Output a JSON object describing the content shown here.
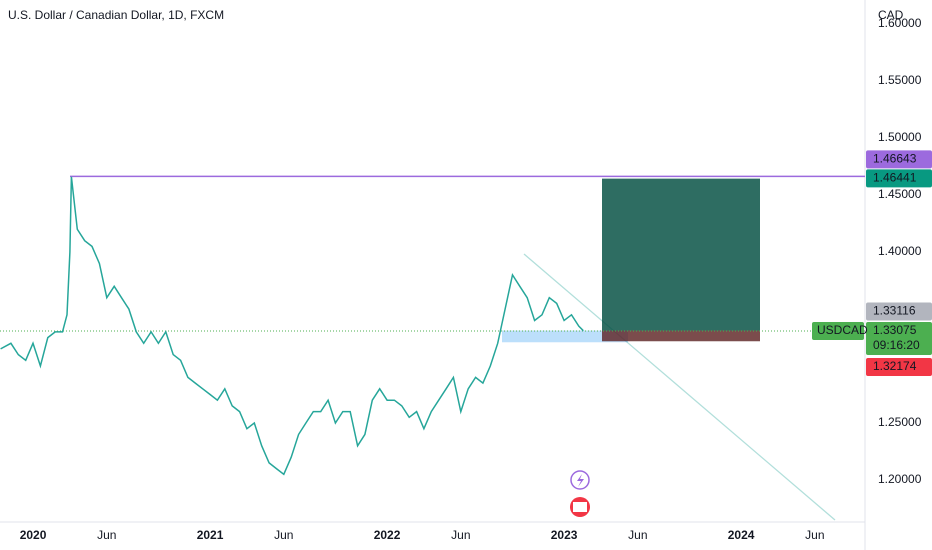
{
  "chart_data": {
    "type": "line",
    "title": "U.S. Dollar / Canadian Dollar, 1D, FXCM",
    "currency": "CAD",
    "symbol": "USDCAD",
    "countdown": "09:16:20",
    "color": "#26a69a",
    "x": [
      -2.2,
      -1.5,
      -1,
      -0.5,
      0,
      0.5,
      1,
      1.5,
      2,
      2.3,
      2.5,
      2.6,
      3,
      3.5,
      4,
      4.5,
      5,
      5.5,
      6,
      6.5,
      7,
      7.5,
      8,
      8.5,
      9,
      9.5,
      10,
      10.5,
      11,
      11.5,
      12,
      12.5,
      13,
      13.5,
      14,
      14.5,
      15,
      15.5,
      16,
      16.5,
      17,
      17.5,
      18,
      18.5,
      19,
      19.5,
      20,
      20.5,
      21,
      21.5,
      22,
      22.5,
      23,
      23.5,
      24,
      24.5,
      25,
      25.5,
      26,
      26.5,
      27,
      27.5,
      28,
      28.5,
      29,
      29.5,
      30,
      30.5,
      31,
      31.5,
      32,
      32.5,
      33,
      33.5,
      34,
      34.5,
      35,
      35.5,
      36,
      36.5,
      37,
      37.3
    ],
    "values": [
      1.315,
      1.32,
      1.31,
      1.305,
      1.32,
      1.3,
      1.325,
      1.33,
      1.33,
      1.345,
      1.4,
      1.466,
      1.42,
      1.41,
      1.405,
      1.39,
      1.36,
      1.37,
      1.36,
      1.35,
      1.33,
      1.32,
      1.33,
      1.32,
      1.33,
      1.31,
      1.305,
      1.29,
      1.285,
      1.28,
      1.275,
      1.27,
      1.28,
      1.265,
      1.26,
      1.245,
      1.25,
      1.23,
      1.215,
      1.21,
      1.205,
      1.22,
      1.24,
      1.25,
      1.26,
      1.26,
      1.27,
      1.25,
      1.26,
      1.26,
      1.23,
      1.24,
      1.27,
      1.28,
      1.27,
      1.27,
      1.265,
      1.255,
      1.26,
      1.245,
      1.26,
      1.27,
      1.28,
      1.29,
      1.26,
      1.28,
      1.29,
      1.285,
      1.3,
      1.32,
      1.35,
      1.38,
      1.37,
      1.36,
      1.34,
      1.345,
      1.36,
      1.355,
      1.34,
      1.345,
      1.335,
      1.331
    ],
    "xlim": [
      -2.24,
      56.4
    ],
    "xticks": [
      {
        "value": 0,
        "label": "2020"
      },
      {
        "value": 5,
        "label": "Jun"
      },
      {
        "value": 12,
        "label": "2021"
      },
      {
        "value": 17,
        "label": "Jun"
      },
      {
        "value": 24,
        "label": "2022"
      },
      {
        "value": 29,
        "label": "Jun"
      },
      {
        "value": 36,
        "label": "2023"
      },
      {
        "value": 41,
        "label": "Jun"
      },
      {
        "value": 48,
        "label": "2024"
      },
      {
        "value": 53,
        "label": "Jun"
      }
    ],
    "ylim": [
      1.1632,
      1.6211
    ],
    "yticks": [
      {
        "value": 1.6,
        "label": "1.60000"
      },
      {
        "value": 1.55,
        "label": "1.55000"
      },
      {
        "value": 1.5,
        "label": "1.50000"
      },
      {
        "value": 1.45,
        "label": "1.45000"
      },
      {
        "value": 1.4,
        "label": "1.40000"
      },
      {
        "value": 1.25,
        "label": "1.25000"
      },
      {
        "value": 1.2,
        "label": "1.20000"
      }
    ],
    "resistance": {
      "value": 1.46643,
      "label": "1.46643"
    },
    "target": {
      "value": 1.46441,
      "label": "1.46441"
    },
    "entry": {
      "value": 1.33116,
      "label": "1.33116"
    },
    "last": {
      "value": 1.33075,
      "label": "1.33075"
    },
    "stop": {
      "value": 1.32174,
      "label": "1.32174"
    }
  }
}
